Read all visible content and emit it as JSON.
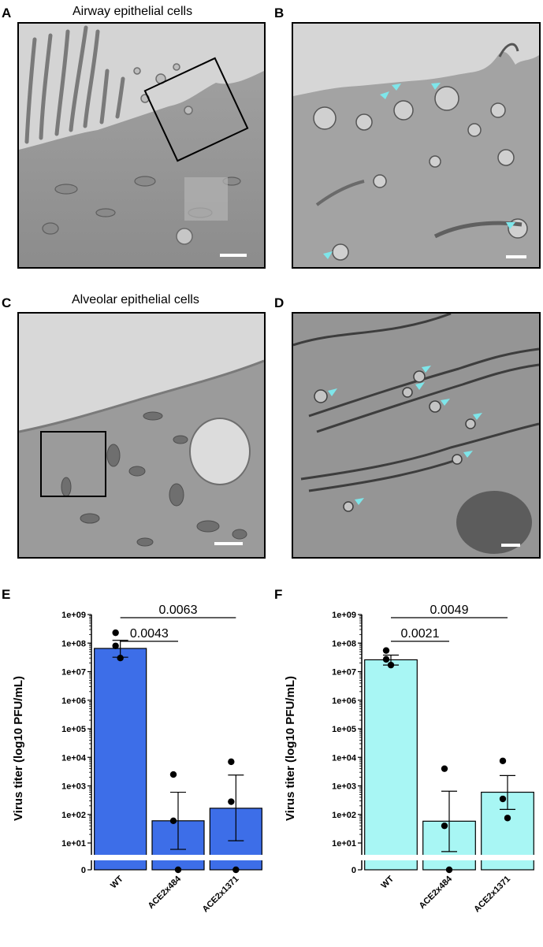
{
  "panels": {
    "A": {
      "label": "A",
      "title": "Airway epithelial cells"
    },
    "B": {
      "label": "B"
    },
    "C": {
      "label": "C",
      "title": "Alveolar epithelial cells"
    },
    "D": {
      "label": "D"
    },
    "E": {
      "label": "E"
    },
    "F": {
      "label": "F"
    }
  },
  "colors": {
    "E": "#3d6ee8",
    "F": "#a8f6f4",
    "arrowhead": "#7ee6ea"
  },
  "chart_data": [
    {
      "type": "bar",
      "panel": "E",
      "categories": [
        "WT",
        "ACE2x484",
        "ACE2x1371"
      ],
      "values": [
        65000000,
        60,
        165
      ],
      "error_low": [
        32000000,
        6,
        12
      ],
      "error_high": [
        125000000,
        600,
        2400
      ],
      "points": [
        [
          230000000,
          80000000,
          30000000
        ],
        [
          2500,
          60,
          0
        ],
        [
          7000,
          280,
          0
        ]
      ],
      "ylabel": "Virus titer (log10 PFU/mL)",
      "yscale": "log",
      "yticks": [
        "0",
        "1e+01",
        "1e+02",
        "1e+03",
        "1e+04",
        "1e+05",
        "1e+06",
        "1e+07",
        "1e+08",
        "1e+09"
      ],
      "comparisons": [
        {
          "from": "WT",
          "to": "ACE2x484",
          "p": "0.0043"
        },
        {
          "from": "WT",
          "to": "ACE2x1371",
          "p": "0.0063"
        }
      ],
      "color": "#3d6ee8"
    },
    {
      "type": "bar",
      "panel": "F",
      "categories": [
        "WT",
        "ACE2x484",
        "ACE2x1371"
      ],
      "values": [
        26000000,
        58,
        600
      ],
      "error_low": [
        17000000,
        5,
        150
      ],
      "error_high": [
        38000000,
        650,
        2300
      ],
      "points": [
        [
          55000000,
          27000000,
          17000000
        ],
        [
          4000,
          40,
          0
        ],
        [
          7500,
          350,
          75
        ]
      ],
      "ylabel": "Virus titer (log10 PFU/mL)",
      "yscale": "log",
      "yticks": [
        "0",
        "1e+01",
        "1e+02",
        "1e+03",
        "1e+04",
        "1e+05",
        "1e+06",
        "1e+07",
        "1e+08",
        "1e+09"
      ],
      "comparisons": [
        {
          "from": "WT",
          "to": "ACE2x484",
          "p": "0.0021"
        },
        {
          "from": "WT",
          "to": "ACE2x1371",
          "p": "0.0049"
        }
      ],
      "color": "#a8f6f4"
    }
  ]
}
